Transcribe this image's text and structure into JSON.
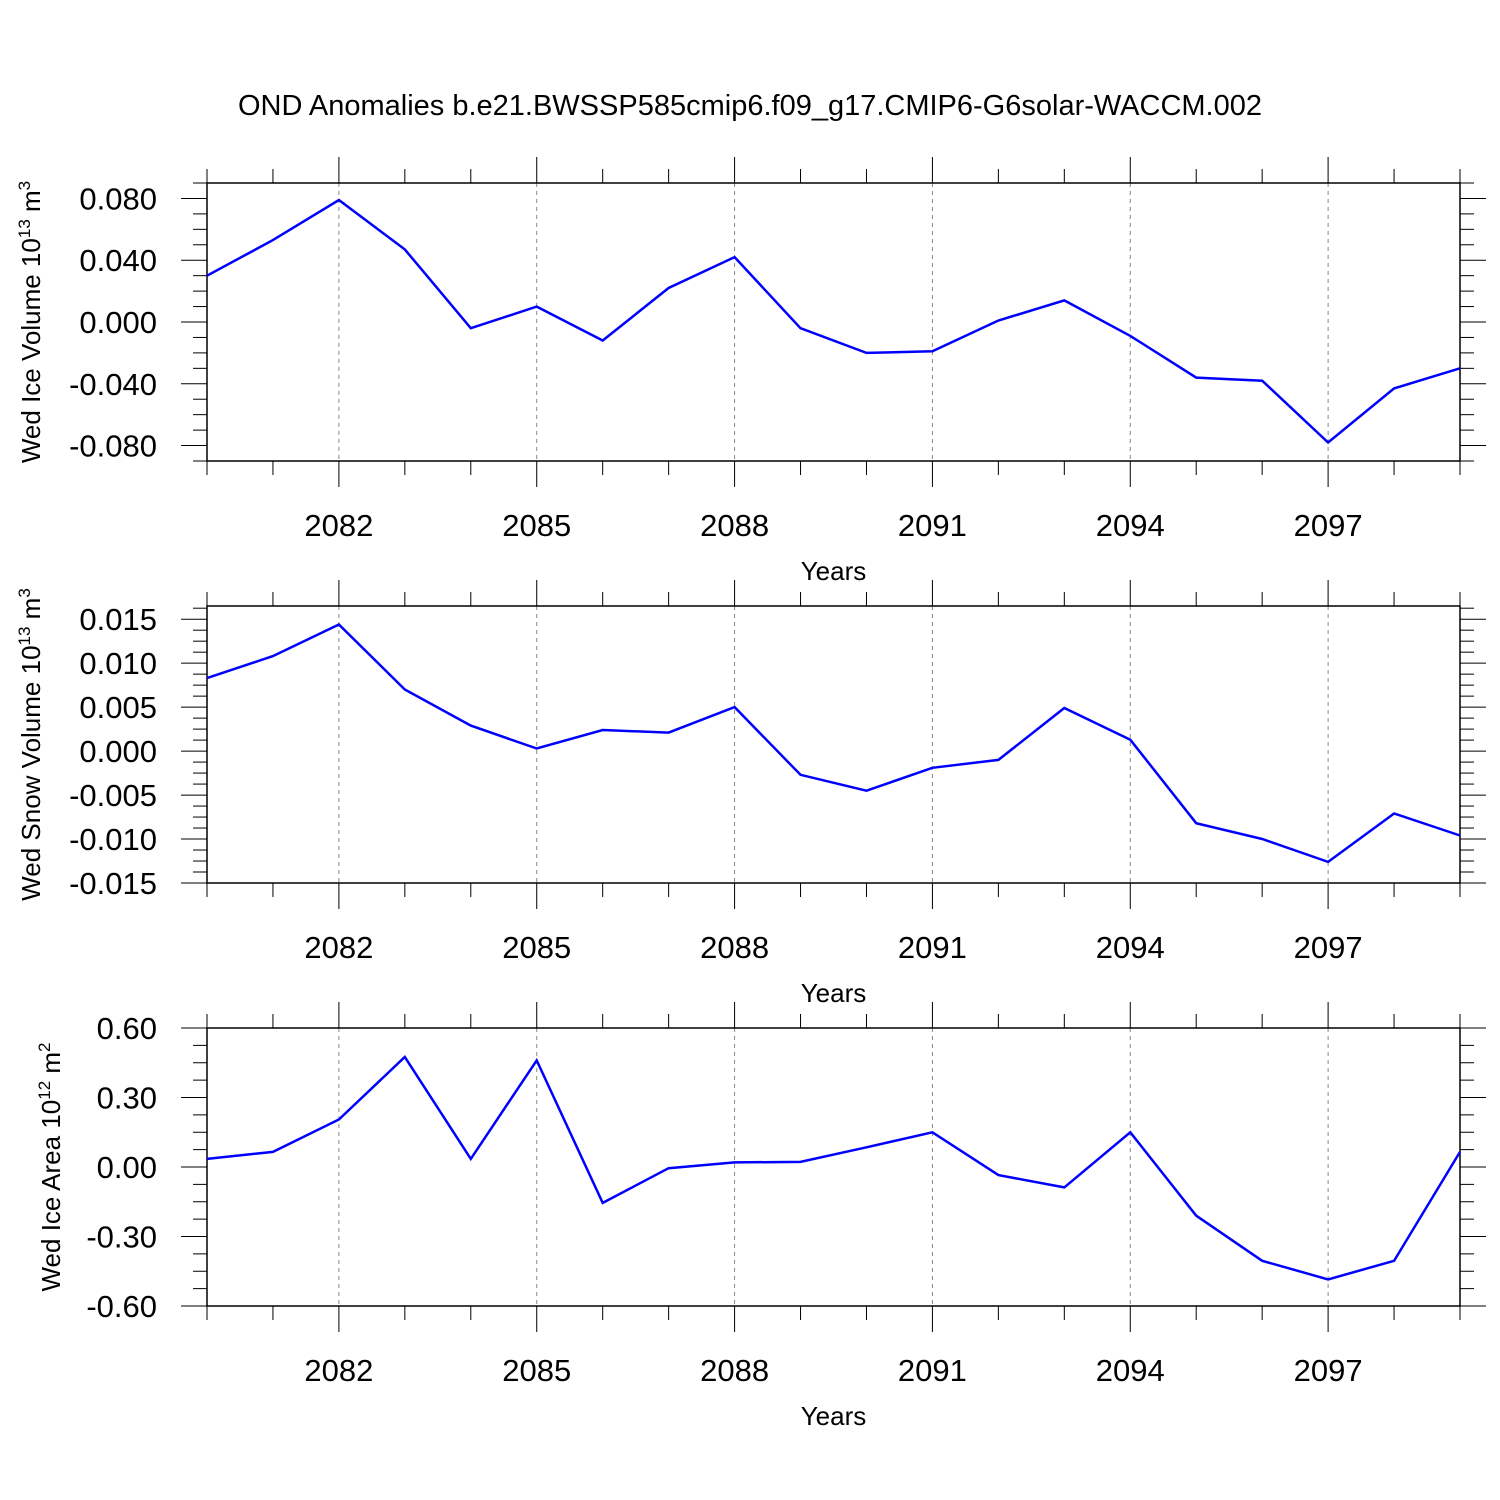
{
  "title": "OND Anomalies b.e21.BWSSP585cmip6.f09_g17.CMIP6-G6solar-WACCM.002",
  "line_color": "#0000ff",
  "chart_data": [
    {
      "type": "line",
      "ylabel": "Wed Ice Volume 10",
      "ylabel_exp": "13",
      "ylabel_unit": " m",
      "ylabel_unit_exp": "3",
      "xlabel": "Years",
      "xlim": [
        2080,
        2099
      ],
      "ylim": [
        -0.09,
        0.09
      ],
      "x_ticks": [
        "2082",
        "2085",
        "2088",
        "2091",
        "2094",
        "2097"
      ],
      "y_ticks": [
        "0.080",
        "0.040",
        "0.000",
        "-0.040",
        "-0.080"
      ],
      "y_tick_values": [
        0.08,
        0.04,
        0.0,
        -0.04,
        -0.08
      ],
      "grid": "vertical dashed at labeled years",
      "x": [
        2080,
        2081,
        2082,
        2083,
        2084,
        2085,
        2086,
        2087,
        2088,
        2089,
        2090,
        2091,
        2092,
        2093,
        2094,
        2095,
        2096,
        2097,
        2098,
        2099
      ],
      "values": [
        0.03,
        0.053,
        0.079,
        0.047,
        -0.004,
        0.01,
        -0.012,
        0.022,
        0.042,
        -0.004,
        -0.02,
        -0.019,
        0.001,
        0.014,
        -0.009,
        -0.036,
        -0.038,
        -0.078,
        -0.043,
        -0.03
      ]
    },
    {
      "type": "line",
      "ylabel": "Wed Snow Volume 10",
      "ylabel_exp": "13",
      "ylabel_unit": " m",
      "ylabel_unit_exp": "3",
      "xlabel": "Years",
      "xlim": [
        2080,
        2099
      ],
      "ylim": [
        -0.015,
        0.0165
      ],
      "x_ticks": [
        "2082",
        "2085",
        "2088",
        "2091",
        "2094",
        "2097"
      ],
      "y_ticks": [
        "0.015",
        "0.010",
        "0.005",
        "0.000",
        "-0.005",
        "-0.010",
        "-0.015"
      ],
      "y_tick_values": [
        0.015,
        0.01,
        0.005,
        0.0,
        -0.005,
        -0.01,
        -0.015
      ],
      "grid": "vertical dashed at labeled years",
      "x": [
        2080,
        2081,
        2082,
        2083,
        2084,
        2085,
        2086,
        2087,
        2088,
        2089,
        2090,
        2091,
        2092,
        2093,
        2094,
        2095,
        2096,
        2097,
        2098,
        2099
      ],
      "values": [
        0.0083,
        0.0108,
        0.0144,
        0.007,
        0.0029,
        0.0003,
        0.0024,
        0.0021,
        0.005,
        -0.0027,
        -0.0045,
        -0.0019,
        -0.001,
        0.0049,
        0.0013,
        -0.0082,
        -0.01,
        -0.0126,
        -0.0071,
        -0.0096
      ]
    },
    {
      "type": "line",
      "ylabel": "Wed Ice Area 10",
      "ylabel_exp": "12",
      "ylabel_unit": " m",
      "ylabel_unit_exp": "2",
      "xlabel": "Years",
      "xlim": [
        2080,
        2099
      ],
      "ylim": [
        -0.6,
        0.6
      ],
      "x_ticks": [
        "2082",
        "2085",
        "2088",
        "2091",
        "2094",
        "2097"
      ],
      "y_ticks": [
        "0.60",
        "0.30",
        "0.00",
        "-0.30",
        "-0.60"
      ],
      "y_tick_values": [
        0.6,
        0.3,
        0.0,
        -0.3,
        -0.6
      ],
      "grid": "vertical dashed at labeled years",
      "x": [
        2080,
        2081,
        2082,
        2083,
        2084,
        2085,
        2086,
        2087,
        2088,
        2089,
        2090,
        2091,
        2092,
        2093,
        2094,
        2095,
        2096,
        2097,
        2098,
        2099
      ],
      "values": [
        0.035,
        0.065,
        0.205,
        0.475,
        0.035,
        0.46,
        -0.155,
        -0.005,
        0.02,
        0.022,
        0.085,
        0.15,
        -0.035,
        -0.088,
        0.15,
        -0.21,
        -0.405,
        -0.485,
        -0.405,
        0.065
      ]
    }
  ]
}
